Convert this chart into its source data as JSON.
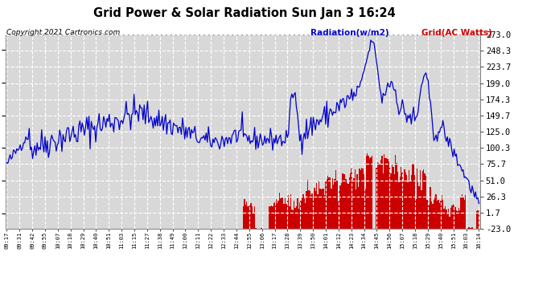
{
  "title": "Grid Power & Solar Radiation Sun Jan 3 16:24",
  "copyright": "Copyright 2021 Cartronics.com",
  "legend_radiation": "Radiation(w/m2)",
  "legend_grid": "Grid(AC Watts)",
  "ylabel_right_ticks": [
    "-23.0",
    "1.7",
    "26.3",
    "51.0",
    "75.7",
    "100.3",
    "125.0",
    "149.7",
    "174.3",
    "199.0",
    "223.7",
    "248.3",
    "273.0"
  ],
  "ylabel_right_values": [
    -23.0,
    1.7,
    26.3,
    51.0,
    75.7,
    100.3,
    125.0,
    149.7,
    174.3,
    199.0,
    223.7,
    248.3,
    273.0
  ],
  "x_tick_labels": [
    "09:17",
    "09:31",
    "09:42",
    "09:55",
    "10:07",
    "10:18",
    "10:29",
    "10:40",
    "10:51",
    "11:03",
    "11:15",
    "11:27",
    "11:38",
    "11:49",
    "12:00",
    "12:11",
    "12:22",
    "12:33",
    "12:44",
    "12:55",
    "13:06",
    "13:17",
    "13:28",
    "13:39",
    "13:50",
    "14:01",
    "14:12",
    "14:23",
    "14:34",
    "14:45",
    "14:56",
    "15:07",
    "15:18",
    "15:29",
    "15:40",
    "15:51",
    "16:03",
    "16:14"
  ],
  "background_color": "#ffffff",
  "plot_bg_color": "#d8d8d8",
  "grid_color": "#ffffff",
  "radiation_color": "#0000cc",
  "grid_bar_color": "#cc0000",
  "title_color": "#000000",
  "copyright_color": "#000000",
  "ymin": -23.0,
  "ymax": 273.0
}
